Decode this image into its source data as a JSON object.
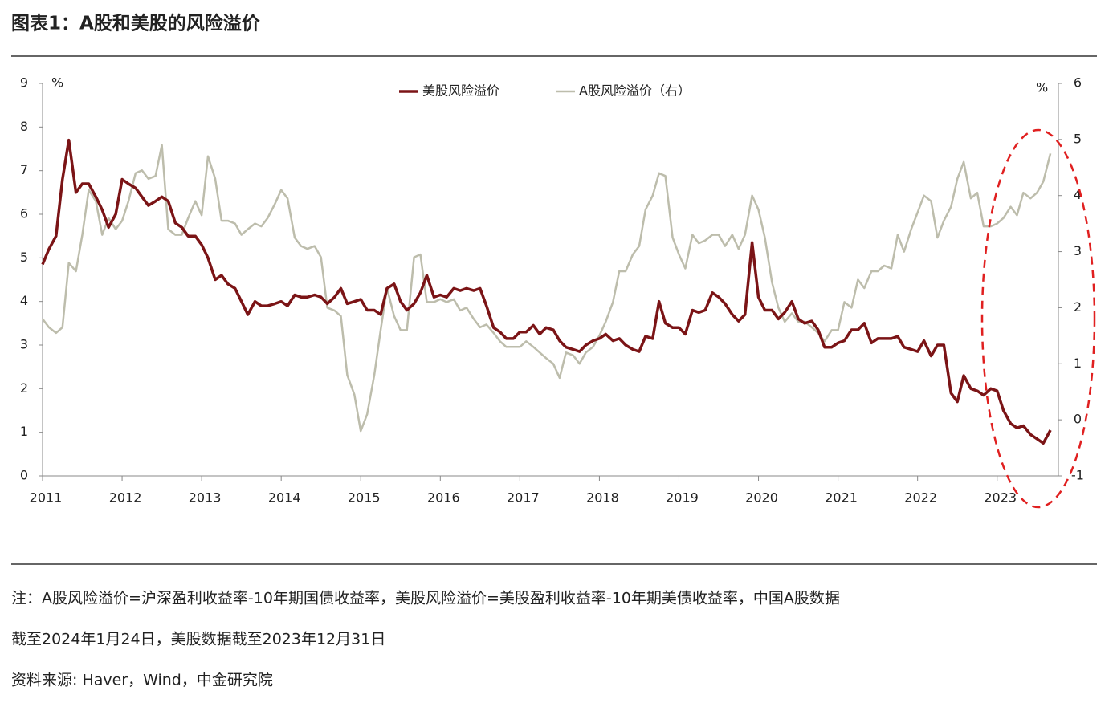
{
  "header": {
    "title": "图表1：A股和美股的风险溢价"
  },
  "chart_data": {
    "type": "line",
    "y_unit": "%",
    "y2_unit": "%",
    "x": [
      2011,
      2011.08,
      2011.17,
      2011.25,
      2011.33,
      2011.42,
      2011.5,
      2011.58,
      2011.67,
      2011.75,
      2011.83,
      2011.92,
      2012,
      2012.08,
      2012.17,
      2012.25,
      2012.33,
      2012.42,
      2012.5,
      2012.58,
      2012.67,
      2012.75,
      2012.83,
      2012.92,
      2013,
      2013.08,
      2013.17,
      2013.25,
      2013.33,
      2013.42,
      2013.5,
      2013.58,
      2013.67,
      2013.75,
      2013.83,
      2013.92,
      2014,
      2014.08,
      2014.17,
      2014.25,
      2014.33,
      2014.42,
      2014.5,
      2014.58,
      2014.67,
      2014.75,
      2014.83,
      2014.92,
      2015,
      2015.08,
      2015.17,
      2015.25,
      2015.33,
      2015.42,
      2015.5,
      2015.58,
      2015.67,
      2015.75,
      2015.83,
      2015.92,
      2016,
      2016.08,
      2016.17,
      2016.25,
      2016.33,
      2016.42,
      2016.5,
      2016.58,
      2016.67,
      2016.75,
      2016.83,
      2016.92,
      2017,
      2017.08,
      2017.17,
      2017.25,
      2017.33,
      2017.42,
      2017.5,
      2017.58,
      2017.67,
      2017.75,
      2017.83,
      2017.92,
      2018,
      2018.08,
      2018.17,
      2018.25,
      2018.33,
      2018.42,
      2018.5,
      2018.58,
      2018.67,
      2018.75,
      2018.83,
      2018.92,
      2019,
      2019.08,
      2019.17,
      2019.25,
      2019.33,
      2019.42,
      2019.5,
      2019.58,
      2019.67,
      2019.75,
      2019.83,
      2019.92,
      2020,
      2020.08,
      2020.17,
      2020.25,
      2020.33,
      2020.42,
      2020.5,
      2020.58,
      2020.67,
      2020.75,
      2020.83,
      2020.92,
      2021,
      2021.08,
      2021.17,
      2021.25,
      2021.33,
      2021.42,
      2021.5,
      2021.58,
      2021.67,
      2021.75,
      2021.83,
      2021.92,
      2022,
      2022.08,
      2022.17,
      2022.25,
      2022.33,
      2022.42,
      2022.5,
      2022.58,
      2022.67,
      2022.75,
      2022.83,
      2022.92,
      2023,
      2023.08,
      2023.17,
      2023.25,
      2023.33,
      2023.42,
      2023.5,
      2023.58,
      2023.67
    ],
    "series": [
      {
        "name": "美股风险溢价",
        "color": "#7b1416",
        "values": [
          4.85,
          5.2,
          5.5,
          6.8,
          7.7,
          6.5,
          6.7,
          6.7,
          6.4,
          6.1,
          5.7,
          6.0,
          6.8,
          6.7,
          6.6,
          6.4,
          6.2,
          6.3,
          6.4,
          6.3,
          5.8,
          5.7,
          5.5,
          5.5,
          5.3,
          5.0,
          4.5,
          4.6,
          4.4,
          4.3,
          4.0,
          3.7,
          4.0,
          3.9,
          3.9,
          3.95,
          4.0,
          3.9,
          4.15,
          4.1,
          4.1,
          4.15,
          4.1,
          3.95,
          4.1,
          4.3,
          3.95,
          4.0,
          4.05,
          3.8,
          3.8,
          3.7,
          4.3,
          4.4,
          4.0,
          3.8,
          3.95,
          4.2,
          4.6,
          4.1,
          4.15,
          4.1,
          4.3,
          4.25,
          4.3,
          4.25,
          4.3,
          3.9,
          3.4,
          3.3,
          3.15,
          3.15,
          3.3,
          3.3,
          3.45,
          3.25,
          3.4,
          3.35,
          3.1,
          2.95,
          2.9,
          2.85,
          3.0,
          3.1,
          3.15,
          3.25,
          3.1,
          3.15,
          3.0,
          2.9,
          2.85,
          3.2,
          3.15,
          4.0,
          3.5,
          3.4,
          3.4,
          3.25,
          3.8,
          3.75,
          3.8,
          4.2,
          4.1,
          3.95,
          3.7,
          3.55,
          3.7,
          5.35,
          4.1,
          3.8,
          3.8,
          3.6,
          3.75,
          4.0,
          3.6,
          3.5,
          3.55,
          3.35,
          2.95,
          2.95,
          3.05,
          3.1,
          3.35,
          3.35,
          3.5,
          3.05,
          3.15,
          3.15,
          3.15,
          3.2,
          2.95,
          2.9,
          2.85,
          3.1,
          2.75,
          3.0,
          3.0,
          1.9,
          1.7,
          2.3,
          2.0,
          1.95,
          1.85,
          2.0,
          1.95,
          1.5,
          1.2,
          1.1,
          1.15,
          0.95,
          0.85,
          0.75,
          1.05
        ]
      },
      {
        "name": "A股风险溢价（右）",
        "color": "#bdbdac",
        "axis": "y2",
        "values": [
          1.8,
          1.65,
          1.55,
          1.65,
          2.8,
          2.65,
          3.3,
          4.1,
          3.9,
          3.3,
          3.6,
          3.4,
          3.55,
          3.9,
          4.4,
          4.45,
          4.3,
          4.35,
          4.9,
          3.4,
          3.3,
          3.3,
          3.6,
          3.9,
          3.65,
          4.7,
          4.3,
          3.55,
          3.55,
          3.5,
          3.3,
          3.4,
          3.5,
          3.45,
          3.6,
          3.85,
          4.1,
          3.95,
          3.25,
          3.1,
          3.05,
          3.1,
          2.9,
          2.0,
          1.95,
          1.85,
          0.8,
          0.45,
          -0.2,
          0.1,
          0.8,
          1.6,
          2.35,
          1.85,
          1.6,
          1.6,
          2.9,
          2.95,
          2.1,
          2.1,
          2.15,
          2.1,
          2.15,
          1.95,
          2.0,
          1.8,
          1.65,
          1.7,
          1.55,
          1.4,
          1.3,
          1.3,
          1.3,
          1.4,
          1.3,
          1.2,
          1.1,
          1.0,
          0.75,
          1.2,
          1.15,
          1.0,
          1.2,
          1.3,
          1.5,
          1.75,
          2.1,
          2.65,
          2.65,
          2.95,
          3.1,
          3.75,
          4.0,
          4.4,
          4.35,
          3.25,
          2.95,
          2.7,
          3.3,
          3.15,
          3.2,
          3.3,
          3.3,
          3.1,
          3.3,
          3.05,
          3.3,
          4.0,
          3.75,
          3.25,
          2.45,
          2.0,
          1.75,
          1.9,
          1.75,
          1.75,
          1.65,
          1.55,
          1.4,
          1.6,
          1.6,
          2.1,
          2.0,
          2.5,
          2.35,
          2.65,
          2.65,
          2.75,
          2.7,
          3.3,
          3.0,
          3.4,
          3.7,
          4.0,
          3.9,
          3.25,
          3.55,
          3.8,
          4.3,
          4.6,
          3.95,
          4.05,
          3.45,
          3.45,
          3.5,
          3.6,
          3.8,
          3.65,
          4.05,
          3.95,
          4.05,
          4.25,
          4.75
        ]
      }
    ],
    "xlim": [
      2011,
      2023.77
    ],
    "xticks": [
      2011,
      2012,
      2013,
      2014,
      2015,
      2016,
      2017,
      2018,
      2019,
      2020,
      2021,
      2022,
      2023
    ],
    "ylim": [
      0,
      9
    ],
    "yticks": [
      0,
      1,
      2,
      3,
      4,
      5,
      6,
      7,
      8,
      9
    ],
    "y2lim": [
      -1,
      6
    ],
    "y2ticks": [
      -1,
      0,
      1,
      2,
      3,
      4,
      5,
      6
    ],
    "legend": "top"
  },
  "footer": {
    "notes": [
      "注：A股风险溢价=沪深盈利收益率-10年期国债收益率，美股风险溢价=美股盈利收益率-10年期美债收益率，中国A股数据",
      "截至2024年1月24日，美股数据截至2023年12月31日"
    ],
    "source": "资料来源: Haver，Wind，中金研究院"
  }
}
